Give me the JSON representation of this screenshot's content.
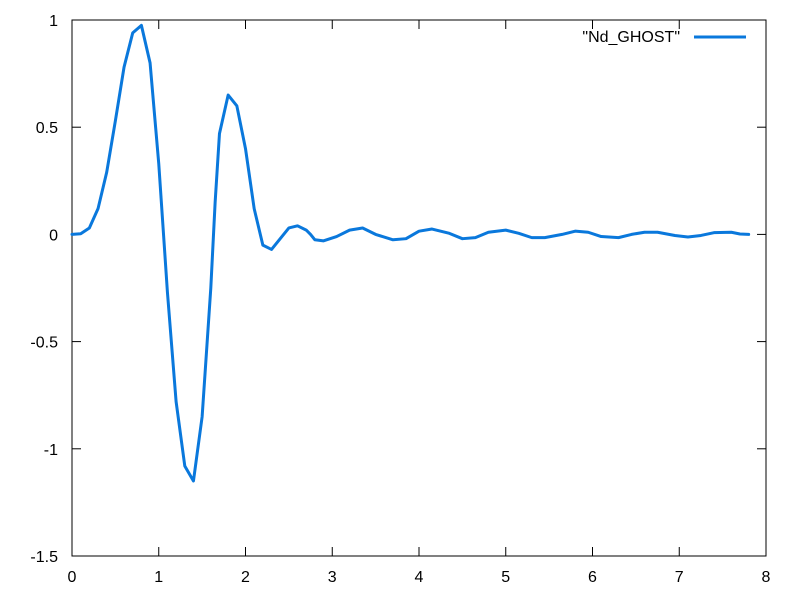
{
  "chart_data": {
    "type": "line",
    "title": "",
    "xlabel": "",
    "ylabel": "",
    "xlim": [
      0,
      8
    ],
    "ylim": [
      -1.5,
      1
    ],
    "x_ticks": [
      {
        "value": 0,
        "label": "0"
      },
      {
        "value": 1,
        "label": "1"
      },
      {
        "value": 2,
        "label": "2"
      },
      {
        "value": 3,
        "label": "3"
      },
      {
        "value": 4,
        "label": "4"
      },
      {
        "value": 5,
        "label": "5"
      },
      {
        "value": 6,
        "label": "6"
      },
      {
        "value": 7,
        "label": "7"
      },
      {
        "value": 8,
        "label": "8"
      }
    ],
    "y_ticks": [
      {
        "value": 1,
        "label": "1"
      },
      {
        "value": 0.5,
        "label": "0.5"
      },
      {
        "value": 0,
        "label": "0"
      },
      {
        "value": -0.5,
        "label": "-0.5"
      },
      {
        "value": -1,
        "label": "-1"
      },
      {
        "value": -1.5,
        "label": "-1.5"
      }
    ],
    "grid": false,
    "legend_position": "top-right",
    "series": [
      {
        "name": "\"Nd_GHOST\"",
        "color": "#0a78dc",
        "x": [
          0,
          0.1,
          0.2,
          0.3,
          0.4,
          0.5,
          0.6,
          0.7,
          0.8,
          0.9,
          1.0,
          1.1,
          1.2,
          1.3,
          1.4,
          1.5,
          1.6,
          1.65,
          1.7,
          1.8,
          1.9,
          2.0,
          2.1,
          2.2,
          2.3,
          2.4,
          2.5,
          2.6,
          2.7,
          2.75,
          2.8,
          2.9,
          3.05,
          3.2,
          3.35,
          3.5,
          3.7,
          3.85,
          4.0,
          4.15,
          4.35,
          4.5,
          4.65,
          4.8,
          5.0,
          5.15,
          5.3,
          5.45,
          5.65,
          5.8,
          5.95,
          6.1,
          6.3,
          6.45,
          6.6,
          6.75,
          6.95,
          7.1,
          7.25,
          7.4,
          7.6,
          7.7,
          7.8
        ],
        "y": [
          0.0,
          0.003,
          0.03,
          0.12,
          0.29,
          0.53,
          0.78,
          0.94,
          0.975,
          0.8,
          0.33,
          -0.27,
          -0.78,
          -1.08,
          -1.15,
          -0.85,
          -0.25,
          0.15,
          0.47,
          0.65,
          0.6,
          0.4,
          0.12,
          -0.05,
          -0.07,
          -0.02,
          0.03,
          0.04,
          0.02,
          0.0,
          -0.025,
          -0.03,
          -0.01,
          0.02,
          0.03,
          0.0,
          -0.025,
          -0.02,
          0.015,
          0.025,
          0.005,
          -0.02,
          -0.015,
          0.01,
          0.02,
          0.005,
          -0.015,
          -0.015,
          0.0,
          0.015,
          0.01,
          -0.01,
          -0.015,
          0.0,
          0.01,
          0.01,
          -0.005,
          -0.012,
          -0.005,
          0.008,
          0.01,
          0.002,
          0.0
        ]
      }
    ]
  }
}
